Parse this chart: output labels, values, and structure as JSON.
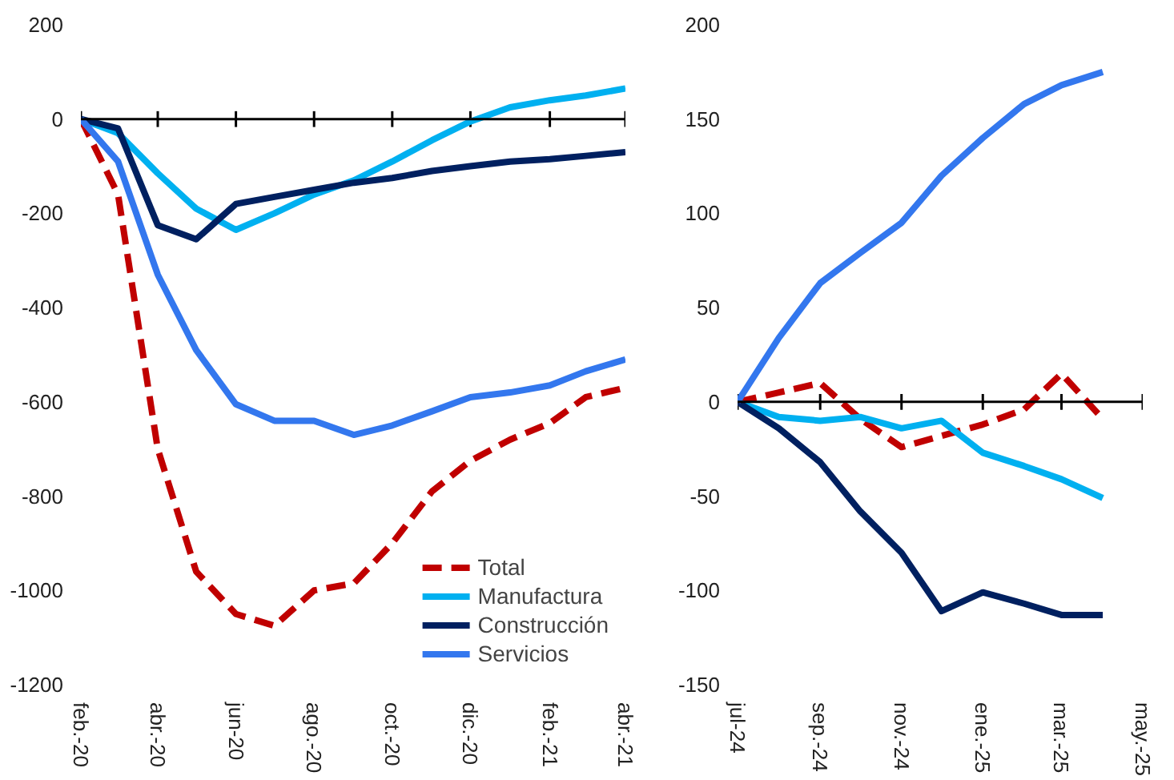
{
  "chart_data": [
    {
      "type": "line",
      "x": [
        "2020-02",
        "2020-03",
        "2020-04",
        "2020-05",
        "2020-06",
        "2020-07",
        "2020-08",
        "2020-09",
        "2020-10",
        "2020-11",
        "2020-12",
        "2021-01",
        "2021-02",
        "2021-03",
        "2021-04"
      ],
      "series": [
        {
          "name": "Total",
          "color": "#c00000",
          "line_style": "dashed",
          "values": [
            0,
            -160,
            -700,
            -960,
            -1050,
            -1075,
            -1000,
            -985,
            -900,
            -790,
            -725,
            -680,
            -645,
            -590,
            -570
          ]
        },
        {
          "name": "Manufactura",
          "color": "#00b0f0",
          "values": [
            0,
            -30,
            -115,
            -190,
            -235,
            -200,
            -160,
            -130,
            -90,
            -45,
            -5,
            25,
            40,
            50,
            65
          ]
        },
        {
          "name": "Construcción",
          "color": "#002060",
          "values": [
            0,
            -20,
            -225,
            -255,
            -180,
            -165,
            -150,
            -135,
            -125,
            -110,
            -100,
            -90,
            -85,
            -78,
            -70
          ]
        },
        {
          "name": "Servicios",
          "color": "#3377ee",
          "values": [
            0,
            -90,
            -330,
            -490,
            -605,
            -640,
            -640,
            -670,
            -650,
            -620,
            -590,
            -580,
            -565,
            -535,
            -510
          ]
        }
      ],
      "xlim": [
        "2020-02",
        "2021-04"
      ],
      "xticks": [
        {
          "value": "2020-02",
          "label": "feb.-20"
        },
        {
          "value": "2020-04",
          "label": "abr.-20"
        },
        {
          "value": "2020-06",
          "label": "jun-20"
        },
        {
          "value": "2020-08",
          "label": "ago.-20"
        },
        {
          "value": "2020-10",
          "label": "oct.-20"
        },
        {
          "value": "2020-12",
          "label": "dic.-20"
        },
        {
          "value": "2021-02",
          "label": "feb.-21"
        },
        {
          "value": "2021-04",
          "label": "abr.-21"
        }
      ],
      "ylim": [
        -1200,
        200
      ],
      "yticks": [
        200,
        0,
        -200,
        -400,
        -600,
        -800,
        -1000,
        -1200
      ],
      "grid": false,
      "legend": "bottom right",
      "line_style": "solid",
      "ref_lines": [
        {
          "axis": "y",
          "value": 0
        }
      ]
    },
    {
      "type": "line",
      "x": [
        "2024-07",
        "2024-08",
        "2024-09",
        "2024-10",
        "2024-11",
        "2024-12",
        "2025-01",
        "2025-02",
        "2025-03",
        "2025-04"
      ],
      "series": [
        {
          "color": "#c00000",
          "line_style": "dashed",
          "values": [
            0,
            5,
            10,
            -9,
            -24,
            -18,
            -12,
            -4,
            15,
            -9
          ]
        },
        {
          "color": "#00b0f0",
          "values": [
            0,
            -8,
            -10,
            -8,
            -14,
            -10,
            -27,
            -34,
            -41,
            -51
          ]
        },
        {
          "color": "#002060",
          "values": [
            0,
            -14,
            -32,
            -58,
            -80,
            -111,
            -101,
            -107,
            -113,
            -113
          ]
        },
        {
          "color": "#3377ee",
          "values": [
            0,
            34,
            63,
            79,
            95,
            120,
            140,
            158,
            168,
            175
          ]
        }
      ],
      "xlim": [
        "2024-07",
        "2025-05"
      ],
      "xticks": [
        {
          "value": "2024-07",
          "label": "jul-24"
        },
        {
          "value": "2024-09",
          "label": "sep.-24"
        },
        {
          "value": "2024-11",
          "label": "nov.-24"
        },
        {
          "value": "2025-01",
          "label": "ene.-25"
        },
        {
          "value": "2025-03",
          "label": "mar.-25"
        },
        {
          "value": "2025-05",
          "label": "may.-25"
        }
      ],
      "ylim": [
        -150,
        200
      ],
      "yticks": [
        200,
        150,
        100,
        50,
        0,
        -50,
        -100,
        -150
      ],
      "grid": false,
      "legend": false,
      "line_style": "solid",
      "ref_lines": [
        {
          "axis": "y",
          "value": 0
        }
      ]
    }
  ]
}
